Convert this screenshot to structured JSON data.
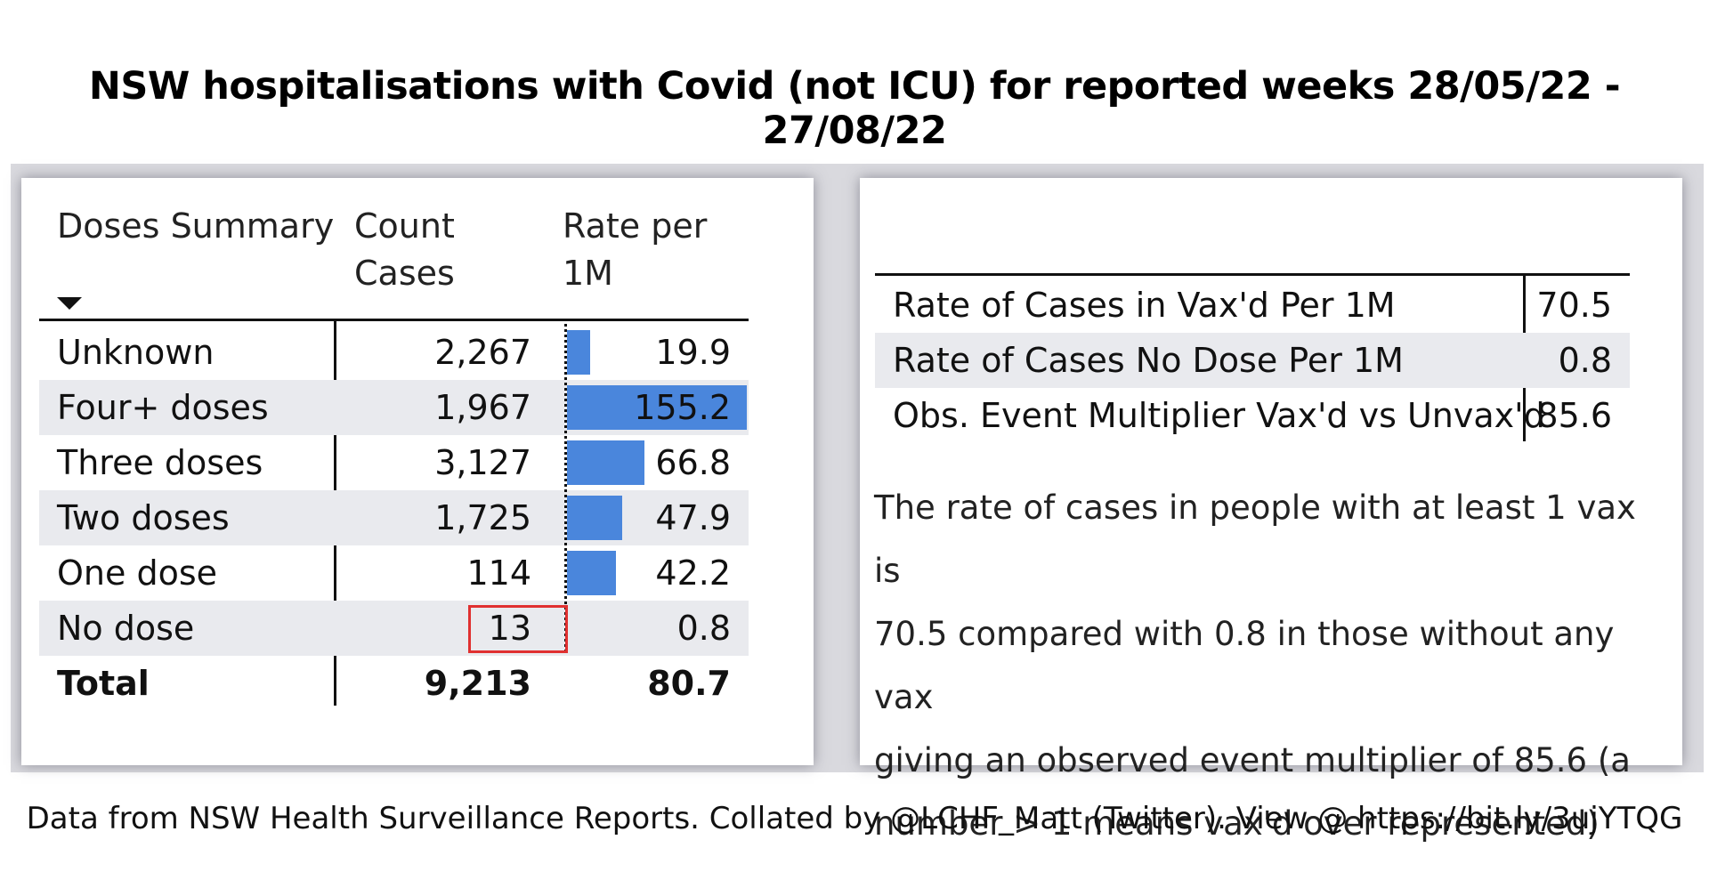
{
  "title": "NSW hospitalisations with Covid (not ICU) for reported weeks 28/05/22 - 27/08/22",
  "footer": "Data from NSW Health Surveillance Reports. Collated by @LCHF_Matt (Twitter). View @ https://bit.ly/3ujYTQG",
  "colors": {
    "bar": "#4a86dc",
    "shade": "#e9eaee",
    "highlight": "#e03030"
  },
  "chart_data": {
    "type": "table",
    "headers": {
      "doses": "Doses Summary",
      "count_line1": "Count",
      "count_line2": "Cases",
      "rate_line1": "Rate per",
      "rate_line2": "1M"
    },
    "sort_icon": "sort-descending-icon",
    "rows": [
      {
        "label": "Unknown",
        "count": "2,267",
        "rate": "19.9",
        "rate_value": 19.9
      },
      {
        "label": "Four+ doses",
        "count": "1,967",
        "rate": "155.2",
        "rate_value": 155.2
      },
      {
        "label": "Three doses",
        "count": "3,127",
        "rate": "66.8",
        "rate_value": 66.8
      },
      {
        "label": "Two doses",
        "count": "1,725",
        "rate": "47.9",
        "rate_value": 47.9
      },
      {
        "label": "One dose",
        "count": "114",
        "rate": "42.2",
        "rate_value": 42.2
      },
      {
        "label": "No dose",
        "count": "13",
        "rate": "0.8",
        "rate_value": 0.8
      }
    ],
    "total": {
      "label": "Total",
      "count": "9,213",
      "rate": "80.7"
    },
    "rate_max": 155.2,
    "highlighted_cell": "No dose count"
  },
  "multiplier_table": [
    {
      "label": "Rate of Cases in Vax'd Per 1M",
      "value": "70.5"
    },
    {
      "label": "Rate of Cases No Dose Per 1M",
      "value": "0.8"
    },
    {
      "label": "Obs. Event Multiplier Vax'd vs Unvax'd",
      "value": "85.6"
    }
  ],
  "summary": {
    "line1": "The rate of cases in people with at least 1 vax is",
    "line2": "70.5 compared with 0.8 in those without any vax",
    "line3": "giving an observed event multiplier of 85.6 (a",
    "line4": "number > 1 means vax'd over represented)"
  }
}
